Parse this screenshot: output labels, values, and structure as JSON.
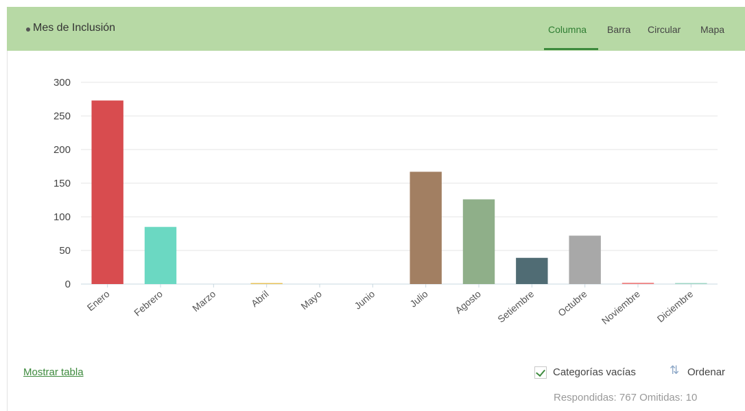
{
  "header": {
    "title": "Mes de Inclusión",
    "tabs": [
      {
        "label": "Columna",
        "active": true
      },
      {
        "label": "Barra",
        "active": false
      },
      {
        "label": "Circular",
        "active": false
      },
      {
        "label": "Mapa",
        "active": false
      }
    ]
  },
  "chart_data": {
    "type": "bar",
    "categories": [
      "Enero",
      "Febrero",
      "Marzo",
      "Abril",
      "Mayo",
      "Junio",
      "Julio",
      "Agosto",
      "Setiembre",
      "Octubre",
      "Noviembre",
      "Diciembre"
    ],
    "values": [
      273,
      85,
      0,
      1,
      0,
      0,
      167,
      126,
      39,
      72,
      2,
      1
    ],
    "colors": [
      "#d84c4f",
      "#6bd8c2",
      "#cfcfcf",
      "#e8c25a",
      "#cfcfcf",
      "#cfcfcf",
      "#a27f62",
      "#8faf89",
      "#506c74",
      "#a8a8a8",
      "#f08a8a",
      "#9ed6c4"
    ],
    "yticks": [
      0,
      50,
      100,
      150,
      200,
      250,
      300
    ],
    "ylim": [
      0,
      300
    ],
    "grid": true,
    "xlabel": "",
    "ylabel": ""
  },
  "footer": {
    "show_table": "Mostrar tabla",
    "empty_categories_label": "Categorías vacías",
    "empty_categories_checked": true,
    "sort_label": "Ordenar",
    "stats": "Respondidas: 767  Omitidas: 10"
  },
  "icons": {
    "sort": "sort-arrows-icon",
    "check": "check-icon"
  }
}
